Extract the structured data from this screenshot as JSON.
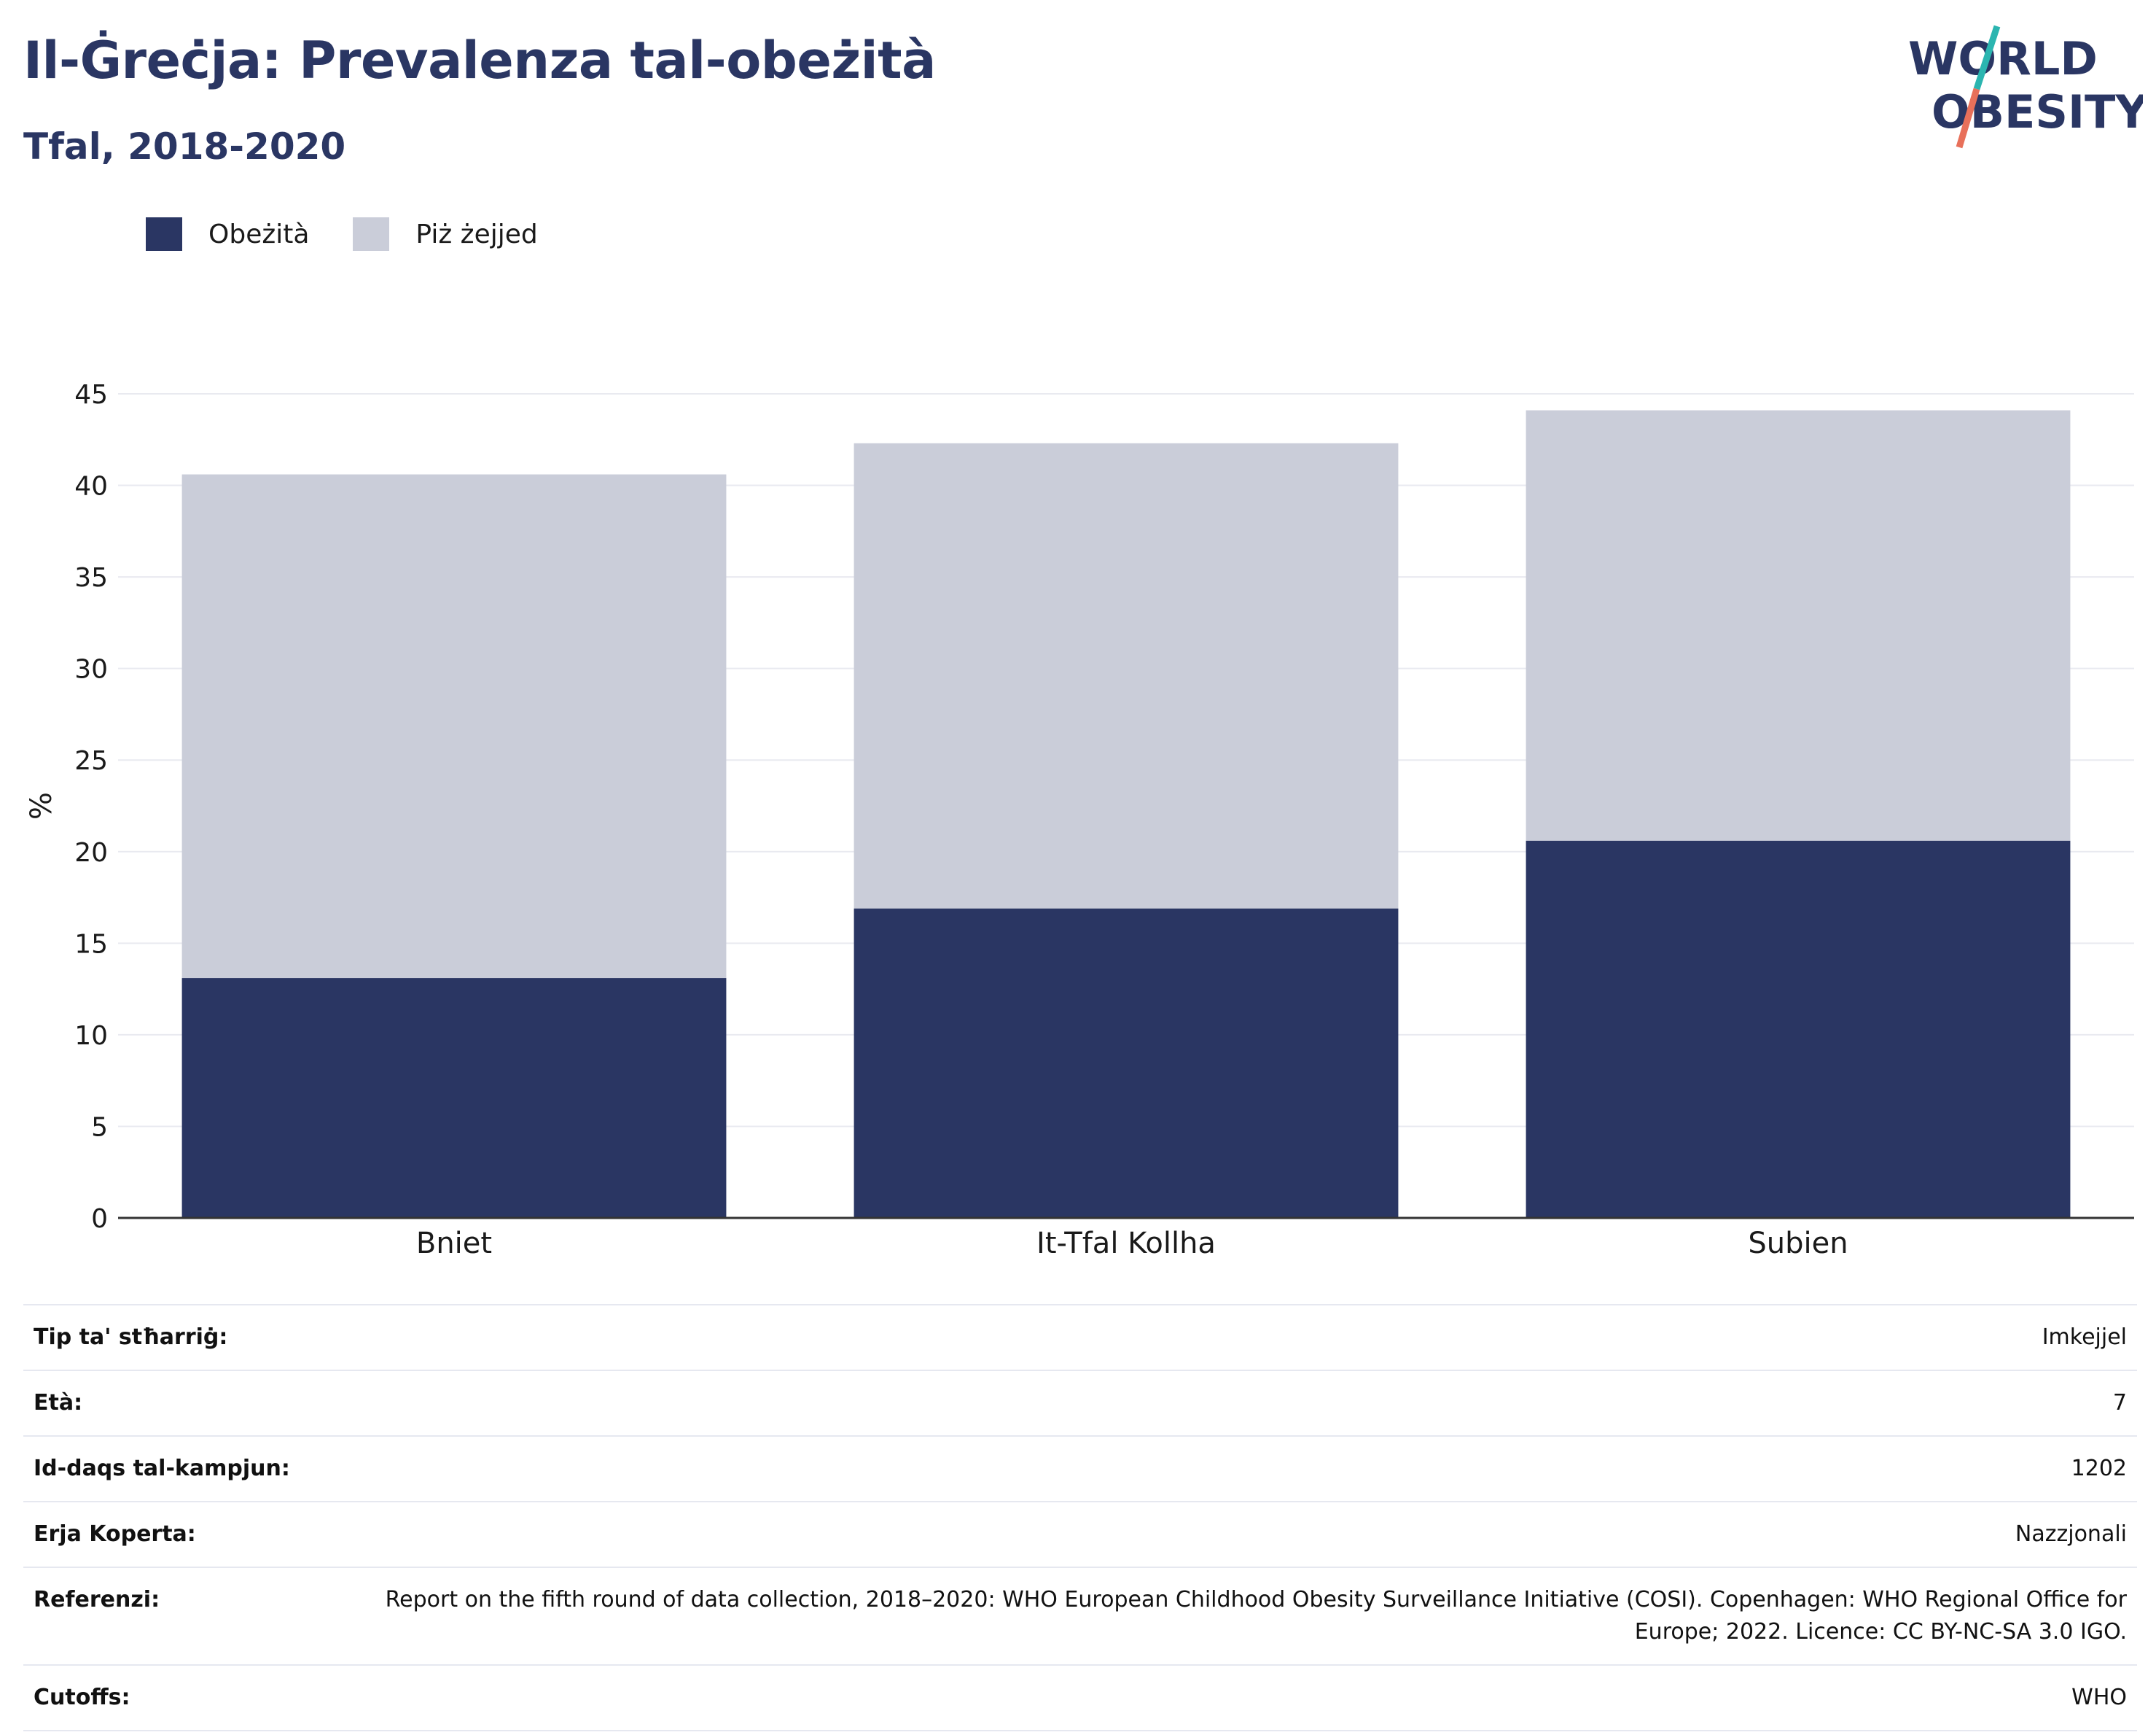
{
  "header": {
    "title": "Il-Ġreċja: Prevalenza tal-obeżità",
    "subtitle": "Tfal, 2018-2020"
  },
  "logo": {
    "line1": "WORLD",
    "line2": "OBESITY"
  },
  "legend": [
    {
      "label": "Obeżità",
      "color": "#2a3663"
    },
    {
      "label": "Piż żejjed",
      "color": "#cacdd9"
    }
  ],
  "chart_data": {
    "type": "bar",
    "stacked": true,
    "categories": [
      "Bniet",
      "It-Tfal Kollha",
      "Subien"
    ],
    "series": [
      {
        "name": "Obeżità",
        "color": "#2a3663",
        "values": [
          13.1,
          16.9,
          20.6
        ]
      },
      {
        "name": "Piż żejjed",
        "color": "#cacdd9",
        "values": [
          27.5,
          25.4,
          23.5
        ]
      }
    ],
    "ylabel": "%",
    "ylim": [
      0,
      45
    ],
    "yticks": [
      0,
      5,
      10,
      15,
      20,
      25,
      30,
      35,
      40,
      45
    ],
    "grid": true,
    "legend_position": "top-left"
  },
  "info": [
    {
      "key": "Tip ta' stħarriġ:",
      "value": "Imkejjel"
    },
    {
      "key": "Età:",
      "value": "7"
    },
    {
      "key": "Id-daqs tal-kampjun:",
      "value": "1202"
    },
    {
      "key": "Erja Koperta:",
      "value": "Nazzjonali"
    },
    {
      "key": "Referenzi:",
      "value": "Report on the fifth round of data collection, 2018–2020: WHO European Childhood Obesity Surveillance Initiative (COSI). Copenhagen: WHO Regional Office for Europe; 2022. Licence: CC BY-NC-SA 3.0 IGO."
    },
    {
      "key": "Cutoffs:",
      "value": "WHO"
    }
  ]
}
